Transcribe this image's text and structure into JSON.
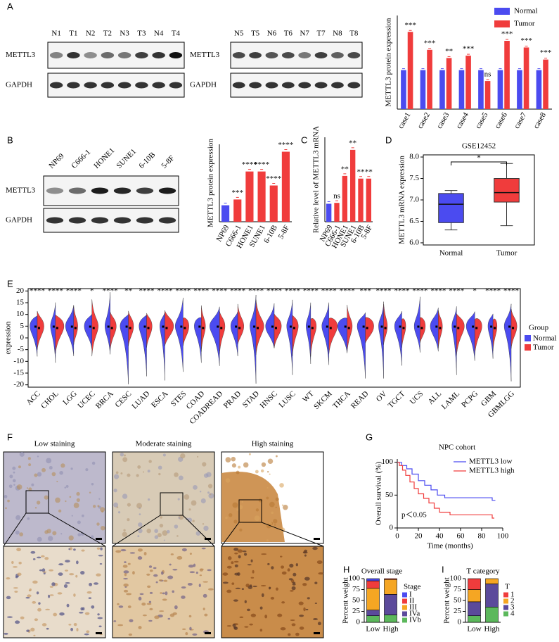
{
  "figure": {
    "panels": [
      "A",
      "B",
      "C",
      "D",
      "E",
      "F",
      "G",
      "H",
      "I"
    ]
  },
  "blots": [
    {
      "lanes": [
        "N1",
        "T1",
        "N2",
        "T2",
        "N3",
        "T3",
        "N4",
        "T4"
      ],
      "rows": [
        "METTL3",
        "GAPDH"
      ]
    },
    {
      "lanes": [
        "N5",
        "T5",
        "N6",
        "T6",
        "N7",
        "T7",
        "N8",
        "T8"
      ],
      "rows": [
        "METTL3",
        "GAPDH"
      ]
    },
    {
      "lanes": [
        "NP69",
        "C666-1",
        "HONE1",
        "SUNE1",
        "6-10B",
        "5-8F"
      ],
      "rows": [
        "METTL3",
        "GAPDH"
      ]
    }
  ],
  "staining": {
    "titles": [
      "Low staining",
      "Moderate staining",
      "High staining"
    ]
  },
  "chart_data": [
    {
      "type": "bar",
      "ylabel": "METTL3 protein expression",
      "categories": [
        "case1",
        "case2",
        "case3",
        "case4",
        "case5",
        "case6",
        "case7",
        "case8"
      ],
      "series": [
        {
          "name": "Normal",
          "color": "#4b4bf0",
          "values": [
            1,
            1,
            1,
            1,
            1,
            1,
            1,
            1
          ]
        },
        {
          "name": "Tumor",
          "color": "#f03c3c",
          "values": [
            1.98,
            1.52,
            1.31,
            1.37,
            0.72,
            1.75,
            1.58,
            1.27
          ]
        }
      ],
      "annotations": [
        "***",
        "***",
        "**",
        "***",
        "ns",
        "***",
        "***",
        "***"
      ],
      "ylim": [
        0,
        2.4
      ],
      "legend": "upper right"
    },
    {
      "type": "bar",
      "ylabel": "METTL3 protein expression",
      "categories": [
        "NP69",
        "C666-1",
        "HONE1",
        "SUNE1",
        "6-10B",
        "5-8F"
      ],
      "values": [
        1,
        1.35,
        3.05,
        3.05,
        2.2,
        4.25
      ],
      "colors": [
        "#4b4bf0",
        "#f03c3c",
        "#f03c3c",
        "#f03c3c",
        "#f03c3c",
        "#f03c3c"
      ],
      "annotations": [
        null,
        "***",
        "****",
        "****",
        "****",
        "****"
      ],
      "ylim": [
        0,
        4.7
      ]
    },
    {
      "type": "bar",
      "ylabel": "Relative level of METTL3 mRNA",
      "categories": [
        "NP69",
        "C666-1",
        "HONE1",
        "SUNE1",
        "6-10B",
        "5-8F"
      ],
      "values": [
        1,
        1.05,
        2.55,
        4.0,
        2.4,
        2.4
      ],
      "colors": [
        "#4b4bf0",
        "#f03c3c",
        "#f03c3c",
        "#f03c3c",
        "#f03c3c",
        "#f03c3c"
      ],
      "annotations": [
        null,
        "ns",
        "**",
        "**",
        "**",
        "**"
      ],
      "ylim": [
        0,
        4.7
      ]
    },
    {
      "type": "box",
      "title": "GSE12452",
      "ylabel": "METTL3 mRNA expression",
      "categories": [
        "Normal",
        "Tumor"
      ],
      "colors": [
        "#4b4bf0",
        "#f03c3c"
      ],
      "boxes": [
        {
          "min": 6.3,
          "q1": 6.47,
          "median": 6.9,
          "q3": 7.15,
          "max": 7.22
        },
        {
          "min": 6.4,
          "q1": 6.95,
          "median": 7.17,
          "q3": 7.5,
          "max": 7.85
        }
      ],
      "annotation": "*",
      "ylim": [
        5.95,
        8.05
      ],
      "yticks": [
        {
          "value": 6,
          "label": "6.0"
        },
        {
          "value": 6.5,
          "label": "6.5"
        },
        {
          "value": 7,
          "label": "7.0"
        },
        {
          "value": 7.5,
          "label": "7.5"
        },
        {
          "value": 8,
          "label": "8.0"
        }
      ]
    },
    {
      "type": "violin",
      "ylabel": "expression",
      "categories": [
        "ACC",
        "CHOL",
        "LGG",
        "UCEC",
        "BRCA",
        "CESC",
        "LUAD",
        "ESCA",
        "STES",
        "COAD",
        "COADREAD",
        "PRAD",
        "STAD",
        "HNSC",
        "LUSC",
        "WT",
        "SKCM",
        "THCA",
        "READ",
        "OV",
        "TGCT",
        "UCS",
        "ALL",
        "LAML",
        "PCPG",
        "GBM",
        "GBMLGG"
      ],
      "annotations": [
        "****",
        "****",
        "****",
        "*",
        "****",
        "**",
        "****",
        "****",
        "****",
        "****",
        "****",
        "****",
        "****",
        "****",
        "****",
        "****",
        "****",
        "****",
        "***",
        "****",
        "****",
        "****",
        "****",
        "****",
        "*",
        "****",
        "****"
      ],
      "series": [
        {
          "name": "Normal",
          "color": "#4b4bf0"
        },
        {
          "name": "Tumor",
          "color": "#f03c3c"
        }
      ],
      "legend_title": "Group",
      "ylim": [
        -21,
        21
      ],
      "yticks": [
        20,
        15,
        10,
        5,
        0,
        -5,
        -10,
        -15,
        -20
      ]
    },
    {
      "type": "line",
      "title": "NPC cohort",
      "xlabel": "Time (months)",
      "ylabel": "Overall survival (%)",
      "series": [
        {
          "name": "METTL3 low",
          "color": "#4b4bf0",
          "x": [
            0,
            4,
            4,
            9,
            9,
            14,
            14,
            20,
            20,
            26,
            26,
            32,
            32,
            38,
            38,
            45,
            45,
            90,
            90,
            93
          ],
          "values": [
            100,
            100,
            95,
            95,
            90,
            90,
            82,
            82,
            72,
            72,
            65,
            65,
            58,
            58,
            50,
            50,
            46,
            46,
            42,
            42
          ]
        },
        {
          "name": "METTL3 high",
          "color": "#f03c3c",
          "x": [
            0,
            2,
            2,
            5,
            5,
            8,
            8,
            12,
            12,
            16,
            16,
            20,
            20,
            25,
            25,
            30,
            30,
            35,
            35,
            40,
            40,
            50,
            50,
            90,
            90,
            92
          ],
          "values": [
            100,
            100,
            95,
            95,
            88,
            88,
            80,
            80,
            70,
            70,
            60,
            60,
            52,
            52,
            45,
            45,
            38,
            38,
            30,
            30,
            24,
            24,
            20,
            20,
            15,
            15
          ]
        }
      ],
      "annotation": "p＜0.05",
      "legend": "upper right",
      "xlim": [
        0,
        100
      ],
      "ylim": [
        0,
        105
      ],
      "xticks": [
        0,
        20,
        40,
        60,
        80,
        100
      ],
      "yticks": [
        0,
        50,
        100
      ]
    },
    {
      "type": "stacked_bar",
      "title": "Overall stage",
      "ylabel": "Percent weight",
      "legend_title": "Stage",
      "categories": [
        "Low",
        "High"
      ],
      "series": [
        {
          "name": "I",
          "color": "#4b4bf0",
          "values": [
            5,
            0
          ]
        },
        {
          "name": "II",
          "color": "#f03c3c",
          "values": [
            17,
            2
          ]
        },
        {
          "name": "III",
          "color": "#f5a623",
          "values": [
            50,
            34
          ]
        },
        {
          "name": "IVa",
          "color": "#5b4a9b",
          "values": [
            13,
            47
          ]
        },
        {
          "name": "IVb",
          "color": "#5cb85c",
          "values": [
            15,
            17
          ]
        }
      ],
      "ylim": [
        0,
        100
      ],
      "yticks": [
        0,
        25,
        50,
        75,
        100
      ]
    },
    {
      "type": "stacked_bar",
      "title": "T category",
      "ylabel": "Percent weight",
      "legend_title": "T",
      "categories": [
        "Low",
        "High"
      ],
      "series": [
        {
          "name": "1",
          "color": "#f03c3c",
          "values": [
            25,
            0
          ]
        },
        {
          "name": "2",
          "color": "#f5a623",
          "values": [
            28,
            12
          ]
        },
        {
          "name": "3",
          "color": "#5b4a9b",
          "values": [
            32,
            53
          ]
        },
        {
          "name": "4",
          "color": "#5cb85c",
          "values": [
            15,
            35
          ]
        }
      ],
      "ylim": [
        0,
        100
      ],
      "yticks": [
        0,
        25,
        50,
        75,
        100
      ]
    }
  ]
}
